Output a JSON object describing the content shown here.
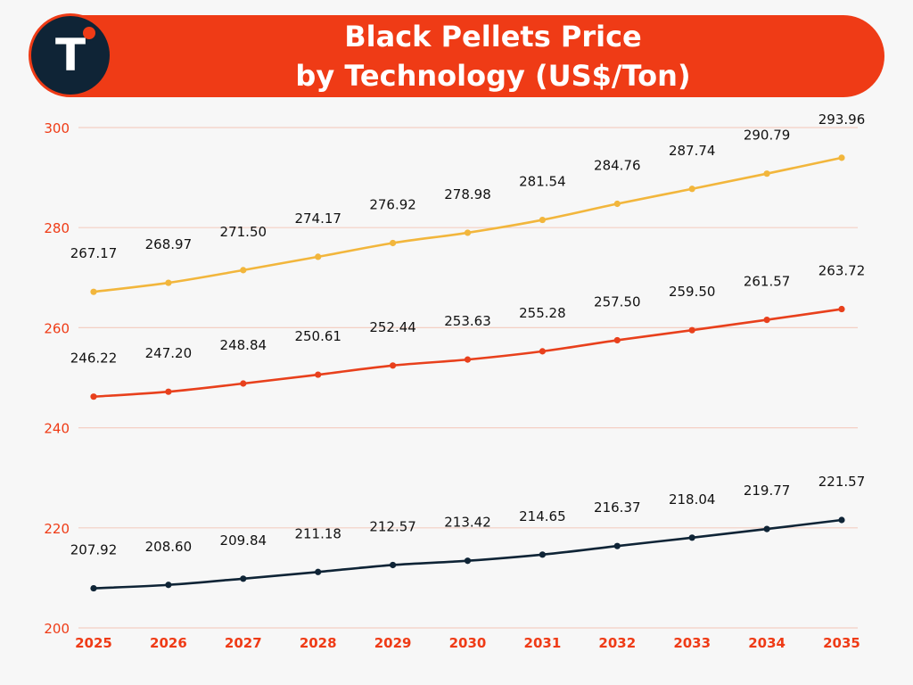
{
  "header": {
    "title_line1": "Black Pellets Price",
    "title_line2": "by Technology (US$/Ton)",
    "logo_letter": "T",
    "bar_color": "#ef3b16",
    "logo_color": "#0f2436"
  },
  "chart_data": {
    "type": "line",
    "categories": [
      "2025",
      "2026",
      "2027",
      "2028",
      "2029",
      "2030",
      "2031",
      "2032",
      "2033",
      "2034",
      "2035"
    ],
    "ylim": [
      200,
      300
    ],
    "yticks": [
      200,
      220,
      240,
      260,
      280,
      300
    ],
    "grid": true,
    "tick_color": "#ef3b16",
    "series": [
      {
        "color": "#f2b63c",
        "values": [
          267.17,
          268.97,
          271.5,
          274.17,
          276.92,
          278.98,
          281.54,
          284.76,
          287.74,
          290.79,
          293.96
        ]
      },
      {
        "color": "#e8401c",
        "values": [
          246.22,
          247.2,
          248.84,
          250.61,
          252.44,
          253.63,
          255.28,
          257.5,
          259.5,
          261.57,
          263.72
        ]
      },
      {
        "color": "#0f2436",
        "values": [
          207.92,
          208.6,
          209.84,
          211.18,
          212.57,
          213.42,
          214.65,
          216.37,
          218.04,
          219.77,
          221.57
        ]
      }
    ]
  }
}
